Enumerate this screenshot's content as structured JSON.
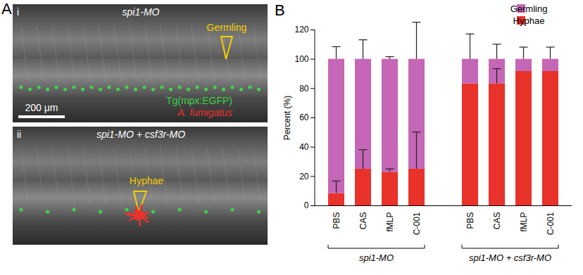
{
  "chart_data": {
    "type": "bar",
    "panel_label": "B",
    "stacked": true,
    "y_label": "Percent (%)",
    "ylim": [
      0,
      120
    ],
    "yticks": [
      0,
      20,
      40,
      60,
      80,
      100,
      120
    ],
    "grid": false,
    "legend": "top-right",
    "groups": [
      {
        "label": "spi1-MO",
        "categories": [
          "PBS",
          "CAS",
          "fMLP",
          "C-001"
        ]
      },
      {
        "label": "spi1-MO + csf3r-MO",
        "categories": [
          "PBS",
          "CAS",
          "fMLP",
          "C-001"
        ]
      }
    ],
    "series": [
      {
        "name": "Hyphae",
        "color": "#e8322a",
        "values": [
          8.3,
          25,
          22.9,
          25,
          83.3,
          83.3,
          91.7,
          91.7
        ],
        "error": [
          8.3,
          13,
          2,
          25,
          null,
          10,
          null,
          null
        ]
      },
      {
        "name": "Germling",
        "color": "#c566b6",
        "values": [
          91.7,
          75,
          77.1,
          75,
          16.7,
          16.7,
          8.3,
          8.3
        ],
        "error": [
          8.3,
          13,
          1.5,
          25,
          17,
          10,
          8,
          8
        ]
      }
    ]
  },
  "image_panel": {
    "panel_label": "A",
    "images": [
      {
        "label": "i",
        "title": "spi1-MO",
        "annotation": "Germling",
        "scale_bar": "200 μm",
        "legend": [
          {
            "text": "Tg(mpx:EGFP)",
            "color": "#3fd14a"
          },
          {
            "text": "A. fumigatus",
            "color": "#e8322a"
          }
        ]
      },
      {
        "label": "ii",
        "title": "spi1-MO + csf3r-MO",
        "annotation": "Hyphae"
      }
    ]
  }
}
